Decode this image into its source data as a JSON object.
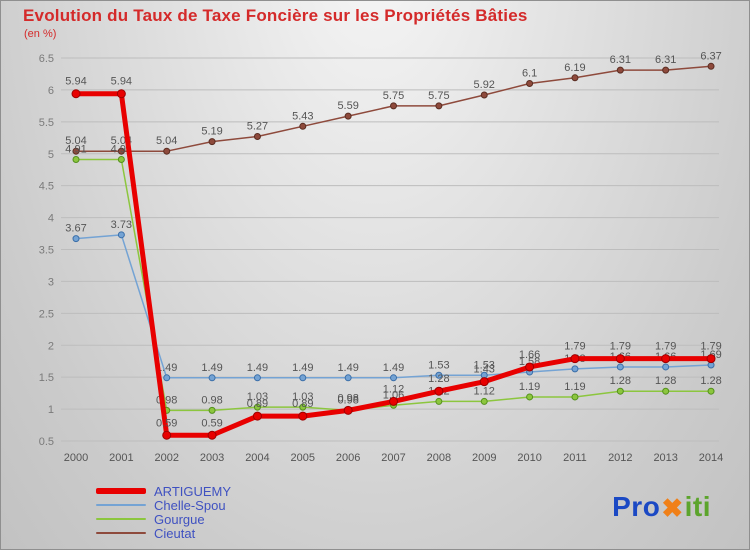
{
  "colors": {
    "title": "#d42a2a",
    "subtitle": "#d42a2a",
    "legend_text": "#3f51c1",
    "grid_line": "#bdbdbd",
    "tick_label": "#7a7a7a",
    "x_label": "#555555"
  },
  "chart_data": {
    "type": "line",
    "title": "Evolution du Taux de Taxe Foncière sur les Propriétés Bâties",
    "subtitle": "(en %)",
    "xlabel": "",
    "ylabel": "",
    "x": [
      2000,
      2001,
      2002,
      2003,
      2004,
      2005,
      2006,
      2007,
      2008,
      2009,
      2010,
      2011,
      2012,
      2013,
      2014
    ],
    "ylim": [
      0.5,
      6.5
    ],
    "yticks": [
      0.5,
      1,
      1.5,
      2,
      2.5,
      3,
      3.5,
      4,
      4.5,
      5,
      5.5,
      6,
      6.5
    ],
    "grid": "horizontal",
    "legend_position": "bottom-left",
    "label_color": "#555555",
    "series": [
      {
        "name": "ARTIGUEMY",
        "color": "#e80000",
        "marker_stroke": "#9c0000",
        "line_width": 5,
        "marker_r": 4,
        "values": [
          5.94,
          5.94,
          0.59,
          0.59,
          0.89,
          0.89,
          0.98,
          1.12,
          1.28,
          1.43,
          1.66,
          1.79,
          1.79,
          1.79,
          1.79
        ]
      },
      {
        "name": "Chelle-Spou",
        "color": "#74a3d4",
        "marker_stroke": "#3a6ea8",
        "line_width": 1.5,
        "marker_r": 3,
        "values": [
          3.67,
          3.73,
          1.49,
          1.49,
          1.49,
          1.49,
          1.49,
          1.49,
          1.53,
          1.53,
          1.58,
          1.63,
          1.66,
          1.66,
          1.69
        ]
      },
      {
        "name": "Gourgue",
        "color": "#8cc63e",
        "marker_stroke": "#53901c",
        "line_width": 1.5,
        "marker_r": 3,
        "values": [
          4.91,
          4.91,
          0.98,
          0.98,
          1.03,
          1.03,
          0.98,
          1.06,
          1.12,
          1.12,
          1.19,
          1.19,
          1.28,
          1.28,
          1.28
        ]
      },
      {
        "name": "Cieutat",
        "color": "#8e4a3c",
        "marker_stroke": "#5a2d22",
        "line_width": 1.5,
        "marker_r": 3,
        "values": [
          5.04,
          5.04,
          5.04,
          5.19,
          5.27,
          5.43,
          5.59,
          5.75,
          5.75,
          5.92,
          6.1,
          6.19,
          6.31,
          6.31,
          6.37
        ]
      }
    ]
  },
  "logo": {
    "part1": "Pro",
    "x": "✖",
    "part2": "iti",
    "color1": "#1b49c4",
    "color_x": "#f08018",
    "color2": "#5ca42c"
  }
}
